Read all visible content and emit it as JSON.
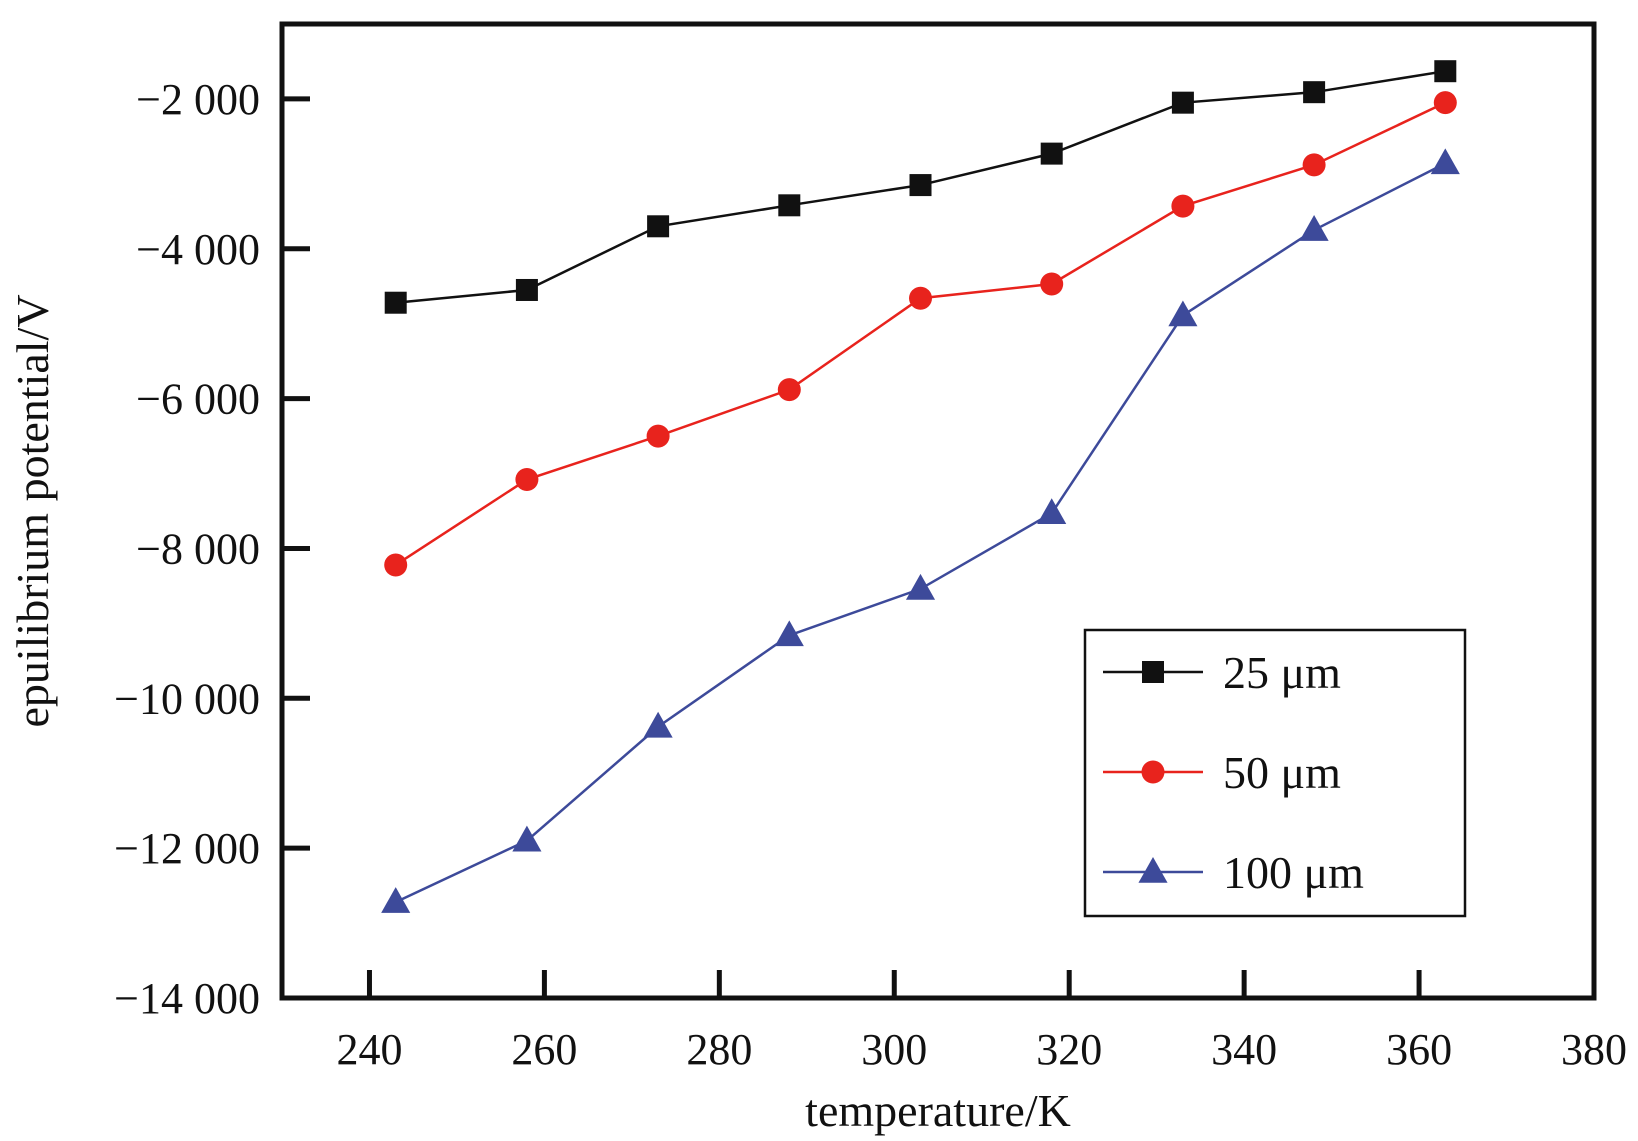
{
  "chart_data": {
    "type": "line",
    "title": "",
    "xlabel": "temperature/K",
    "ylabel": "epuilibrium potential/V",
    "xlim": [
      230,
      380
    ],
    "ylim": [
      -14000,
      -1000
    ],
    "xticks": [
      240,
      260,
      280,
      300,
      320,
      340,
      360,
      380
    ],
    "xtick_labels": [
      "240",
      "260",
      "280",
      "300",
      "320",
      "340",
      "360",
      "380"
    ],
    "yticks": [
      -2000,
      -4000,
      -6000,
      -8000,
      -10000,
      -12000,
      -14000
    ],
    "ytick_labels": [
      "−2 000",
      "−4 000",
      "−6 000",
      "−8 000",
      "−10 000",
      "−12 000",
      "−14 000"
    ],
    "grid": false,
    "legend_position": "lower-right",
    "x": [
      243,
      258,
      273,
      288,
      303,
      318,
      333,
      348,
      363
    ],
    "series": [
      {
        "name": "25 μm",
        "color": "#111111",
        "marker": "square",
        "values": [
          -4720,
          -4550,
          -3700,
          -3420,
          -3150,
          -2730,
          -2050,
          -1910,
          -1630
        ]
      },
      {
        "name": "50 μm",
        "color": "#e8231d",
        "marker": "circle",
        "values": [
          -8220,
          -7080,
          -6500,
          -5880,
          -4660,
          -4470,
          -3430,
          -2880,
          -2050
        ]
      },
      {
        "name": "100 μm",
        "color": "#3d4a9a",
        "marker": "triangle",
        "values": [
          -12720,
          -11900,
          -10380,
          -9160,
          -8540,
          -7530,
          -4890,
          -3750,
          -2860
        ]
      }
    ]
  }
}
